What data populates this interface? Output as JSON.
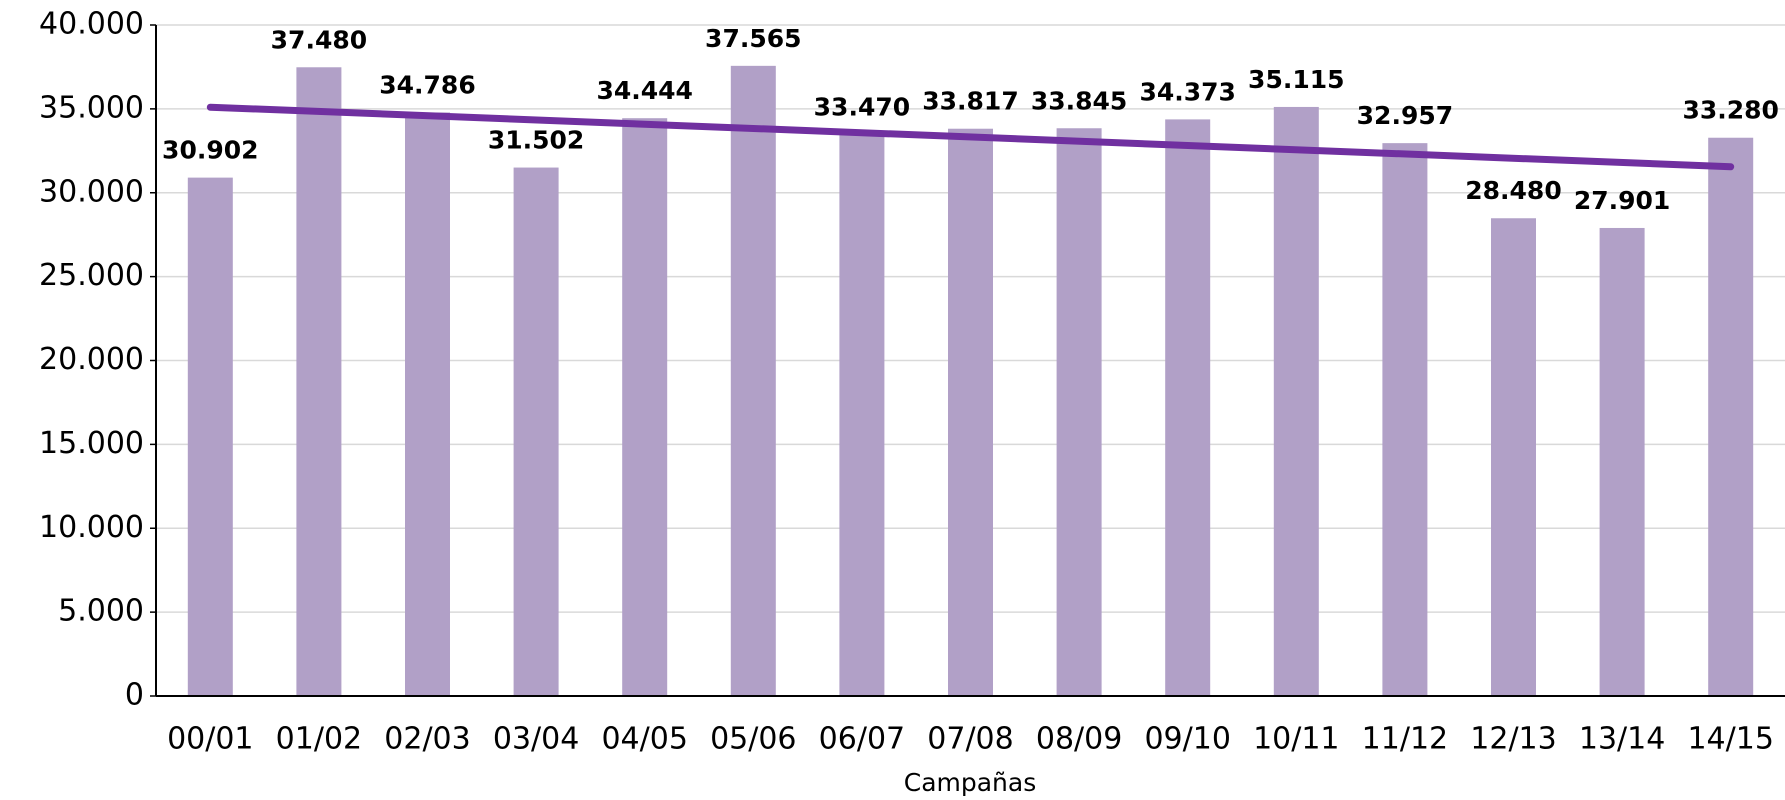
{
  "chart_data": {
    "type": "bar",
    "x_label": "Campañas",
    "categories": [
      "00/01",
      "01/02",
      "02/03",
      "03/04",
      "04/05",
      "05/06",
      "06/07",
      "07/08",
      "08/09",
      "09/10",
      "10/11",
      "11/12",
      "12/13",
      "13/14",
      "14/15"
    ],
    "values": [
      30902,
      37480,
      34786,
      31502,
      34444,
      37565,
      33470,
      33817,
      33845,
      34373,
      35115,
      32957,
      28480,
      27901,
      33280
    ],
    "value_labels": [
      "30.902",
      "37.480",
      "34.786",
      "31.502",
      "34.444",
      "37.565",
      "33.470",
      "33.817",
      "33.845",
      "34.373",
      "35.115",
      "32.957",
      "28.480",
      "27.901",
      "33.280"
    ],
    "color": "#b1a0c7",
    "trendline": {
      "color": "#7030a0",
      "values": [
        35100,
        31550
      ]
    },
    "ylim": [
      0,
      40000
    ],
    "yticks": [
      0,
      {
        "value": 5000,
        "label": "5.000"
      },
      {
        "value": 10000,
        "label": "10.000"
      },
      {
        "value": 15000,
        "label": "15.000"
      },
      {
        "value": 20000,
        "label": "20.000"
      },
      {
        "value": 25000,
        "label": "25.000"
      },
      {
        "value": 30000,
        "label": "30.000"
      },
      {
        "value": 35000,
        "label": "35.000"
      },
      {
        "value": 40000,
        "label": "40.000"
      }
    ],
    "grid": true
  }
}
